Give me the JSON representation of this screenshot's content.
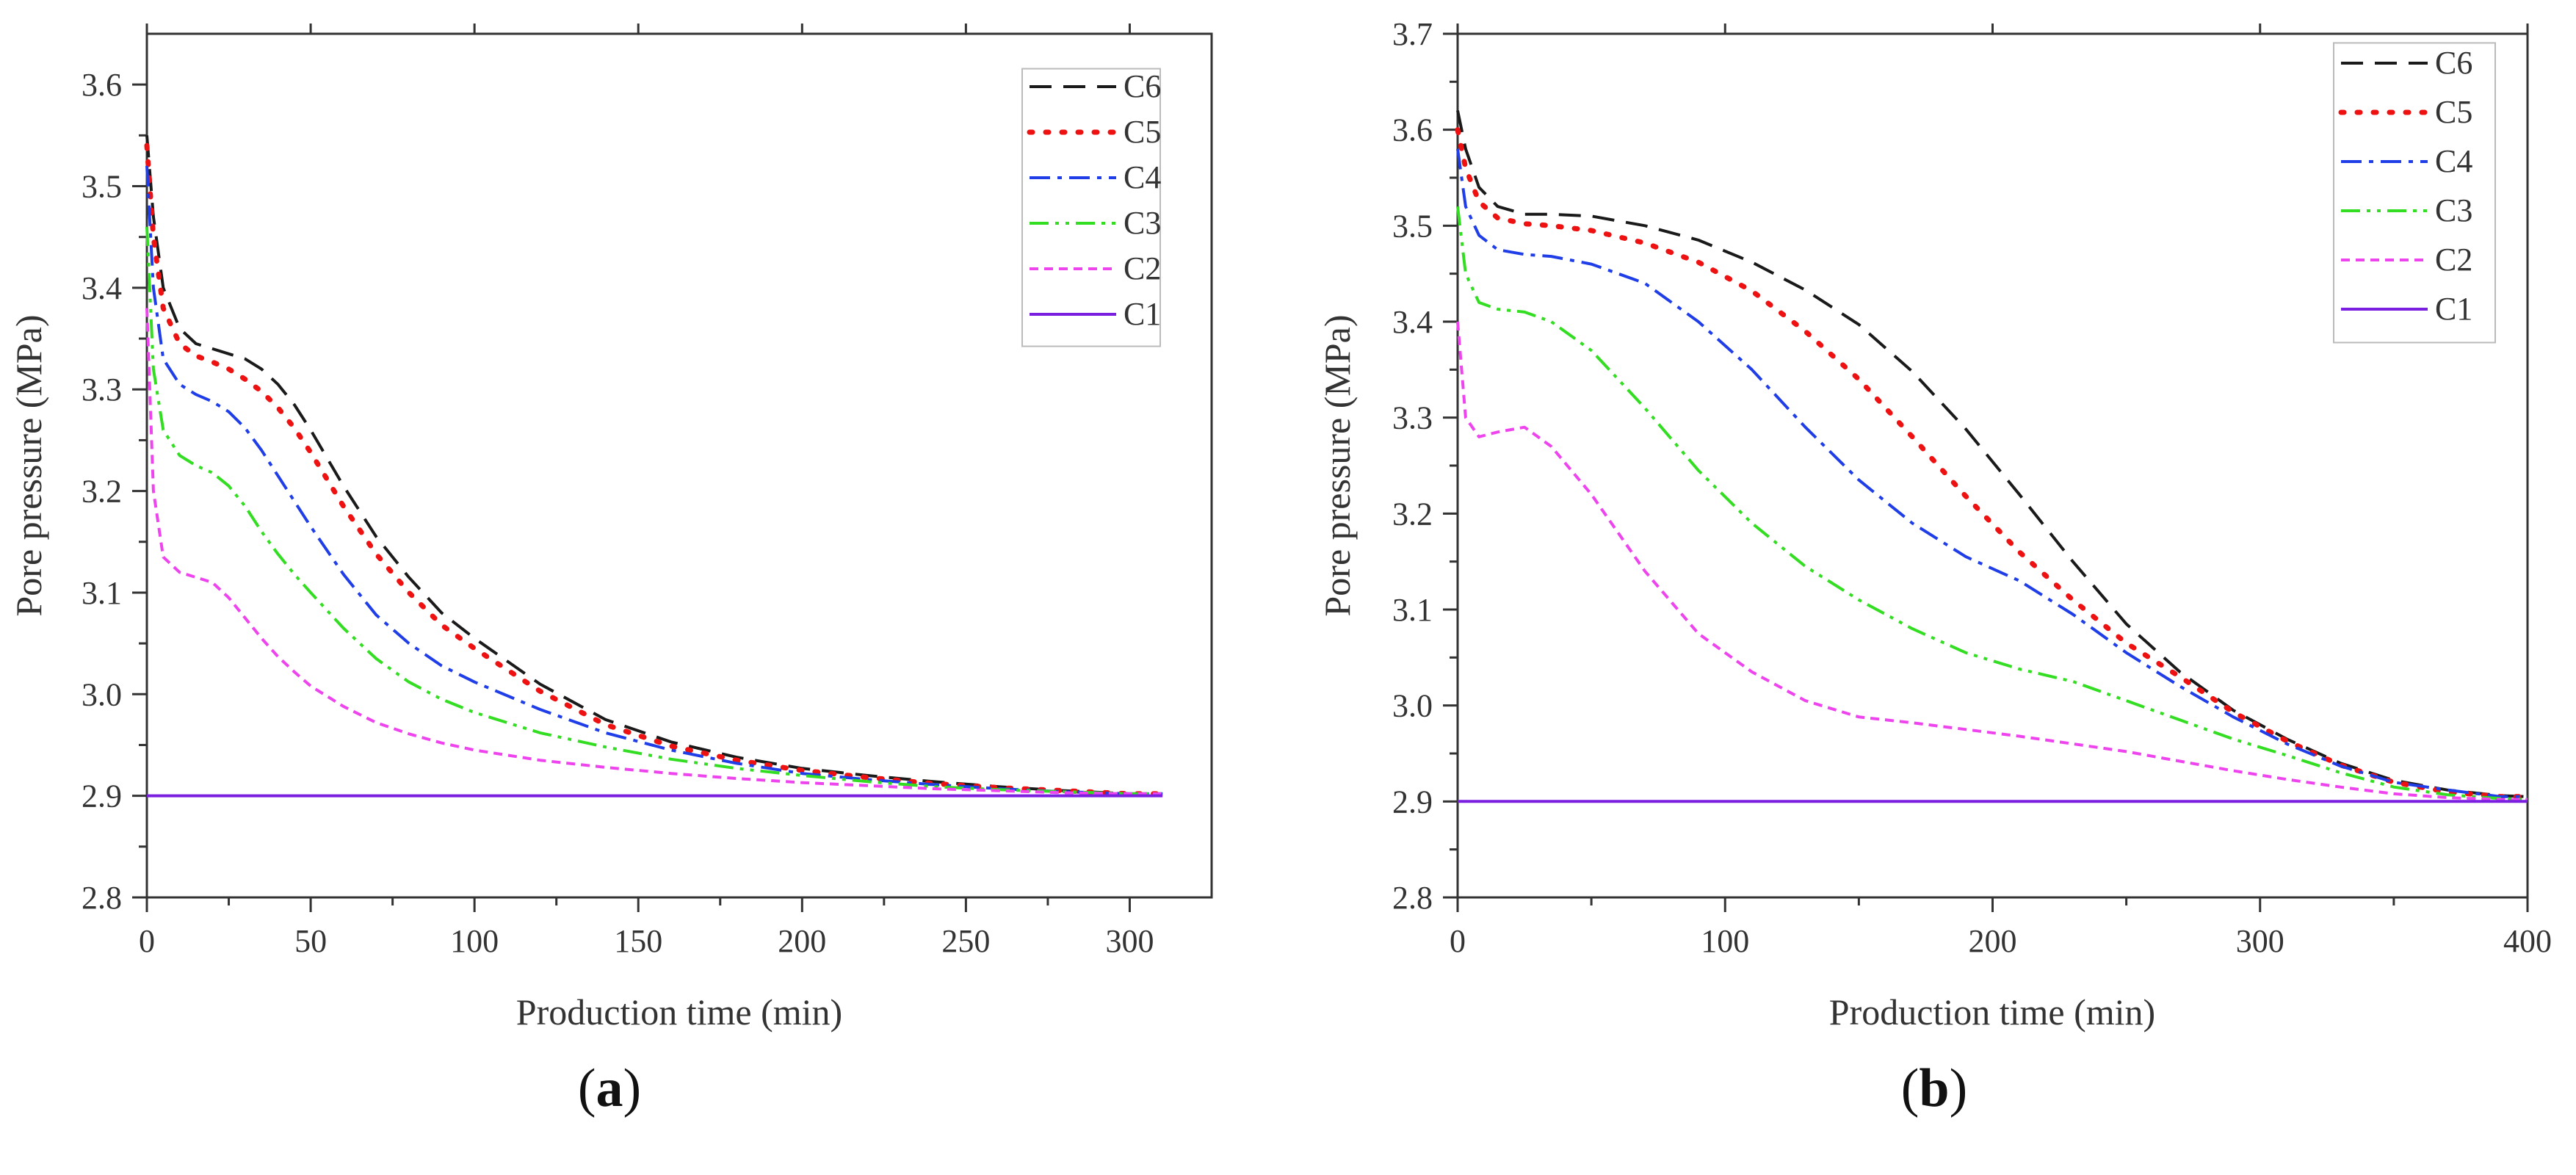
{
  "chart_data": [
    {
      "type": "line",
      "panel": "(a)",
      "panel_letter": "a",
      "xlabel": "Production time (min)",
      "ylabel": "Pore pressure (MPa)",
      "xlim": [
        0,
        325
      ],
      "ylim": [
        2.8,
        3.65
      ],
      "xticks": [
        0,
        50,
        100,
        150,
        200,
        250,
        300
      ],
      "yticks": [
        2.8,
        2.9,
        3.0,
        3.1,
        3.2,
        3.3,
        3.4,
        3.5,
        3.6
      ],
      "legend_position": "top-right",
      "series": [
        {
          "name": "C6",
          "color": "#1a1a1a",
          "dash": "long-dash",
          "x": [
            0,
            2,
            5,
            10,
            15,
            20,
            25,
            30,
            35,
            40,
            45,
            50,
            60,
            70,
            80,
            90,
            100,
            120,
            140,
            160,
            180,
            200,
            220,
            240,
            260,
            280,
            300,
            310
          ],
          "y": [
            3.55,
            3.47,
            3.4,
            3.36,
            3.345,
            3.34,
            3.335,
            3.33,
            3.32,
            3.305,
            3.285,
            3.26,
            3.205,
            3.155,
            3.115,
            3.08,
            3.055,
            3.01,
            2.975,
            2.953,
            2.938,
            2.927,
            2.92,
            2.914,
            2.909,
            2.905,
            2.902,
            2.902
          ]
        },
        {
          "name": "C5",
          "color": "#ee1111",
          "dash": "dot",
          "x": [
            0,
            2,
            5,
            10,
            15,
            20,
            25,
            30,
            35,
            40,
            45,
            50,
            60,
            70,
            80,
            90,
            100,
            120,
            140,
            160,
            180,
            200,
            220,
            240,
            260,
            280,
            300,
            310
          ],
          "y": [
            3.54,
            3.45,
            3.38,
            3.345,
            3.333,
            3.327,
            3.32,
            3.31,
            3.298,
            3.282,
            3.262,
            3.238,
            3.185,
            3.138,
            3.1,
            3.068,
            3.045,
            3.003,
            2.97,
            2.949,
            2.935,
            2.925,
            2.918,
            2.912,
            2.908,
            2.905,
            2.902,
            2.902
          ]
        },
        {
          "name": "C4",
          "color": "#1f3ee8",
          "dash": "dash-dot",
          "x": [
            0,
            2,
            5,
            10,
            15,
            20,
            25,
            30,
            35,
            40,
            45,
            50,
            60,
            70,
            80,
            90,
            100,
            120,
            140,
            160,
            180,
            200,
            220,
            240,
            260,
            280,
            300,
            310
          ],
          "y": [
            3.52,
            3.4,
            3.33,
            3.305,
            3.295,
            3.288,
            3.278,
            3.262,
            3.24,
            3.215,
            3.19,
            3.165,
            3.118,
            3.078,
            3.05,
            3.028,
            3.012,
            2.985,
            2.962,
            2.945,
            2.932,
            2.922,
            2.916,
            2.911,
            2.907,
            2.904,
            2.902,
            2.902
          ]
        },
        {
          "name": "C3",
          "color": "#33dd22",
          "dash": "dash-dot-dot",
          "x": [
            0,
            2,
            5,
            10,
            15,
            20,
            25,
            30,
            35,
            40,
            45,
            50,
            60,
            70,
            80,
            90,
            100,
            120,
            140,
            160,
            180,
            200,
            220,
            240,
            260,
            280,
            300,
            310
          ],
          "y": [
            3.46,
            3.32,
            3.26,
            3.235,
            3.225,
            3.218,
            3.205,
            3.185,
            3.16,
            3.138,
            3.118,
            3.1,
            3.065,
            3.035,
            3.012,
            2.995,
            2.982,
            2.962,
            2.948,
            2.936,
            2.927,
            2.92,
            2.914,
            2.909,
            2.906,
            2.904,
            2.902,
            2.902
          ]
        },
        {
          "name": "C2",
          "color": "#ee44ee",
          "dash": "short-dash",
          "x": [
            0,
            2,
            5,
            10,
            15,
            20,
            25,
            30,
            35,
            40,
            45,
            50,
            60,
            70,
            80,
            90,
            100,
            120,
            140,
            160,
            180,
            200,
            220,
            240,
            260,
            280,
            300,
            310
          ],
          "y": [
            3.38,
            3.2,
            3.135,
            3.12,
            3.115,
            3.11,
            3.095,
            3.075,
            3.055,
            3.037,
            3.022,
            3.008,
            2.988,
            2.972,
            2.961,
            2.952,
            2.945,
            2.935,
            2.928,
            2.922,
            2.917,
            2.913,
            2.91,
            2.907,
            2.905,
            2.903,
            2.902,
            2.902
          ]
        },
        {
          "name": "C1",
          "color": "#7a1fe0",
          "dash": "solid",
          "x": [
            0,
            310
          ],
          "y": [
            2.9,
            2.9
          ]
        }
      ]
    },
    {
      "type": "line",
      "panel": "(b)",
      "panel_letter": "b",
      "xlabel": "Production time (min)",
      "ylabel": "Pore pressure (MPa)",
      "xlim": [
        0,
        400
      ],
      "ylim": [
        2.8,
        3.7
      ],
      "xticks": [
        0,
        100,
        200,
        300,
        400
      ],
      "yticks": [
        2.8,
        2.9,
        3.0,
        3.1,
        3.2,
        3.3,
        3.4,
        3.5,
        3.6,
        3.7
      ],
      "legend_position": "top-right",
      "series": [
        {
          "name": "C6",
          "color": "#1a1a1a",
          "dash": "long-dash",
          "x": [
            0,
            3,
            8,
            15,
            25,
            35,
            50,
            70,
            90,
            110,
            130,
            150,
            170,
            190,
            210,
            230,
            250,
            270,
            290,
            310,
            330,
            350,
            370,
            390,
            400
          ],
          "y": [
            3.62,
            3.58,
            3.54,
            3.52,
            3.512,
            3.512,
            3.51,
            3.5,
            3.485,
            3.462,
            3.433,
            3.397,
            3.348,
            3.288,
            3.22,
            3.15,
            3.085,
            3.035,
            2.995,
            2.965,
            2.94,
            2.922,
            2.912,
            2.906,
            2.905
          ]
        },
        {
          "name": "C5",
          "color": "#ee1111",
          "dash": "dot",
          "x": [
            0,
            3,
            8,
            15,
            25,
            35,
            50,
            70,
            90,
            110,
            130,
            150,
            170,
            190,
            210,
            230,
            250,
            270,
            290,
            310,
            330,
            350,
            370,
            390,
            400
          ],
          "y": [
            3.6,
            3.56,
            3.525,
            3.508,
            3.502,
            3.5,
            3.495,
            3.482,
            3.462,
            3.432,
            3.39,
            3.34,
            3.28,
            3.218,
            3.16,
            3.11,
            3.065,
            3.03,
            2.993,
            2.963,
            2.938,
            2.92,
            2.91,
            2.905,
            2.905
          ]
        },
        {
          "name": "C4",
          "color": "#1f3ee8",
          "dash": "dash-dot",
          "x": [
            0,
            3,
            8,
            15,
            25,
            35,
            50,
            70,
            90,
            110,
            130,
            150,
            170,
            190,
            210,
            230,
            250,
            270,
            290,
            310,
            330,
            350,
            370,
            390,
            400
          ],
          "y": [
            3.58,
            3.52,
            3.49,
            3.475,
            3.47,
            3.468,
            3.46,
            3.44,
            3.4,
            3.35,
            3.29,
            3.235,
            3.19,
            3.155,
            3.13,
            3.095,
            3.055,
            3.02,
            2.988,
            2.96,
            2.937,
            2.92,
            2.912,
            2.905,
            2.905
          ]
        },
        {
          "name": "C3",
          "color": "#33dd22",
          "dash": "dash-dot-dot",
          "x": [
            0,
            3,
            8,
            15,
            25,
            35,
            50,
            70,
            90,
            110,
            130,
            150,
            170,
            190,
            210,
            230,
            250,
            270,
            290,
            310,
            330,
            350,
            370,
            390,
            400
          ],
          "y": [
            3.52,
            3.45,
            3.42,
            3.413,
            3.41,
            3.4,
            3.37,
            3.31,
            3.245,
            3.19,
            3.145,
            3.11,
            3.08,
            3.055,
            3.038,
            3.025,
            3.005,
            2.985,
            2.965,
            2.948,
            2.93,
            2.915,
            2.907,
            2.903,
            2.902
          ]
        },
        {
          "name": "C2",
          "color": "#ee44ee",
          "dash": "short-dash",
          "x": [
            0,
            3,
            8,
            15,
            25,
            35,
            50,
            70,
            90,
            110,
            130,
            150,
            170,
            190,
            210,
            230,
            250,
            270,
            290,
            310,
            330,
            350,
            370,
            390,
            400
          ],
          "y": [
            3.4,
            3.3,
            3.28,
            3.285,
            3.29,
            3.27,
            3.22,
            3.14,
            3.075,
            3.035,
            3.005,
            2.988,
            2.982,
            2.975,
            2.968,
            2.96,
            2.952,
            2.942,
            2.932,
            2.923,
            2.915,
            2.908,
            2.904,
            2.902,
            2.902
          ]
        },
        {
          "name": "C1",
          "color": "#7a1fe0",
          "dash": "solid",
          "x": [
            0,
            400
          ],
          "y": [
            2.9,
            2.9
          ]
        }
      ]
    }
  ]
}
